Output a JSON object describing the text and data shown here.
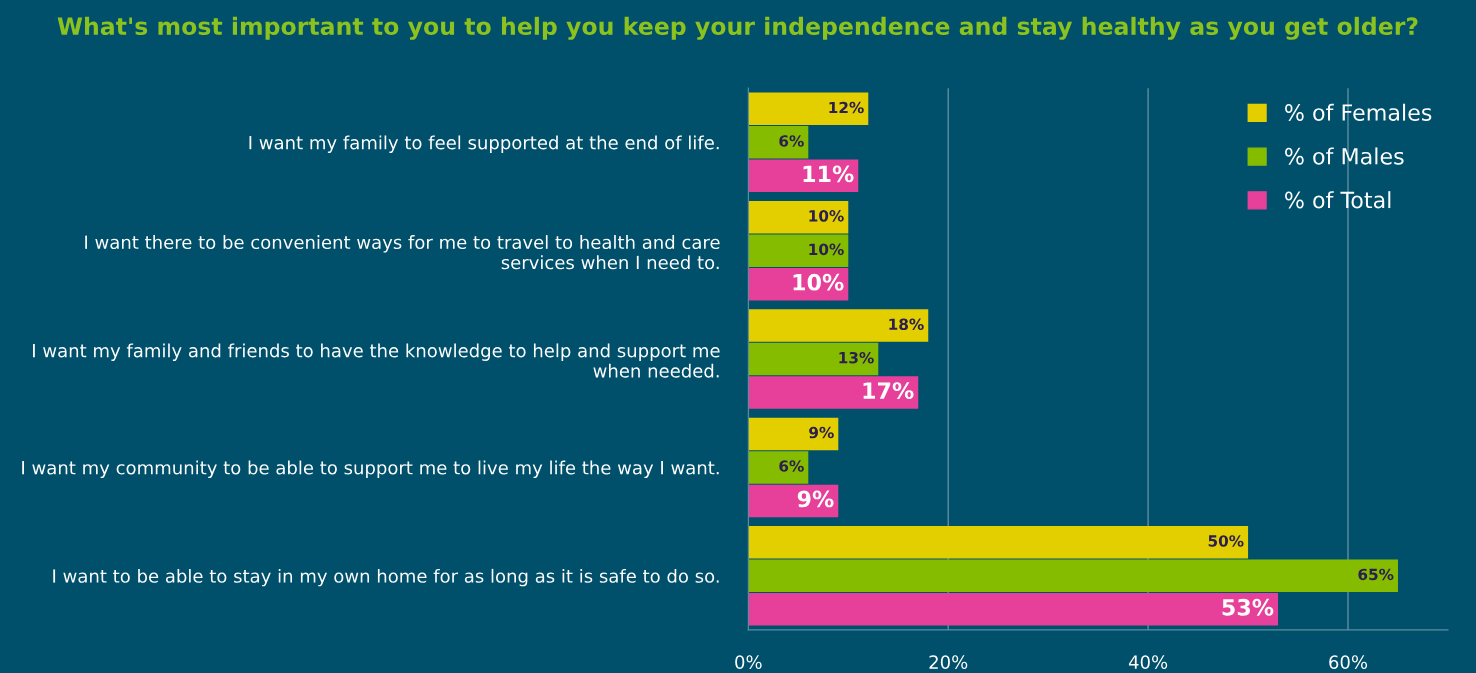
{
  "chart_data": {
    "type": "bar",
    "orientation": "horizontal",
    "title": "What's most important to you to help you keep your independence and stay healthy as you get older?",
    "categories": [
      "I want my family to feel supported at the end of life.",
      "I want there to be convenient ways for me to travel to health and care services when I need to.",
      "I want my family and friends to have the knowledge to help and support me when needed.",
      "I want my community to be able to support me to live my life the way I want.",
      "I want to be able to stay in my own home for as long as it is safe to do so."
    ],
    "series": [
      {
        "name": "% of Females",
        "color": "#e3cf00",
        "values": [
          12,
          10,
          18,
          9,
          50
        ],
        "value_labels": [
          "12%",
          "10%",
          "18%",
          "9%",
          "50%"
        ]
      },
      {
        "name": "% of Males",
        "color": "#85bc00",
        "values": [
          6,
          10,
          13,
          6,
          65
        ],
        "value_labels": [
          "6%",
          "10%",
          "13%",
          "6%",
          "65%"
        ]
      },
      {
        "name": "% of Total",
        "color": "#e6409a",
        "values": [
          11,
          10,
          17,
          9,
          53
        ],
        "value_labels": [
          "11%",
          "10%",
          "17%",
          "9%",
          "53%"
        ]
      }
    ],
    "xlim": [
      0,
      70
    ],
    "xticks": [
      {
        "value": 0,
        "label": "0%"
      },
      {
        "value": 20,
        "label": "20%"
      },
      {
        "value": 40,
        "label": "40%"
      },
      {
        "value": 60,
        "label": "60%"
      }
    ],
    "grid": "x",
    "legend": "top right"
  }
}
